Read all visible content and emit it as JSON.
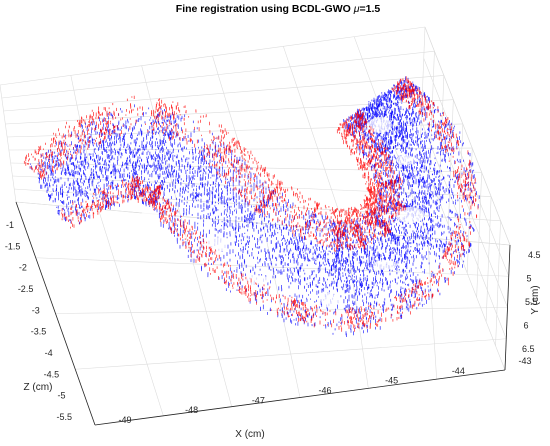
{
  "chart_data": {
    "type": "scatter",
    "title_text": "Fine registration using BCDL-GWO ",
    "title_mu_symbol": "μ",
    "title_mu_value": "=1.5",
    "xlabel": "X (cm)",
    "ylabel": "Y (cm)",
    "zlabel": "Z (cm)",
    "x_ticks": [
      "-49",
      "-48",
      "-47",
      "-46",
      "-45",
      "-44",
      "-43"
    ],
    "y_ticks": [
      "4.5",
      "5",
      "5.5",
      "6",
      "6.5"
    ],
    "z_ticks": [
      "-1",
      "-1.5",
      "-2",
      "-2.5",
      "-3",
      "-3.5",
      "-4",
      "-4.5",
      "-5",
      "-5.5"
    ],
    "xlim": [
      -49,
      -43
    ],
    "ylim": [
      4.5,
      6.5
    ],
    "zlim": [
      -5.5,
      -1
    ],
    "grid": true,
    "series": [
      {
        "color": "#0000ff"
      },
      {
        "color": "#ff0000"
      }
    ]
  }
}
